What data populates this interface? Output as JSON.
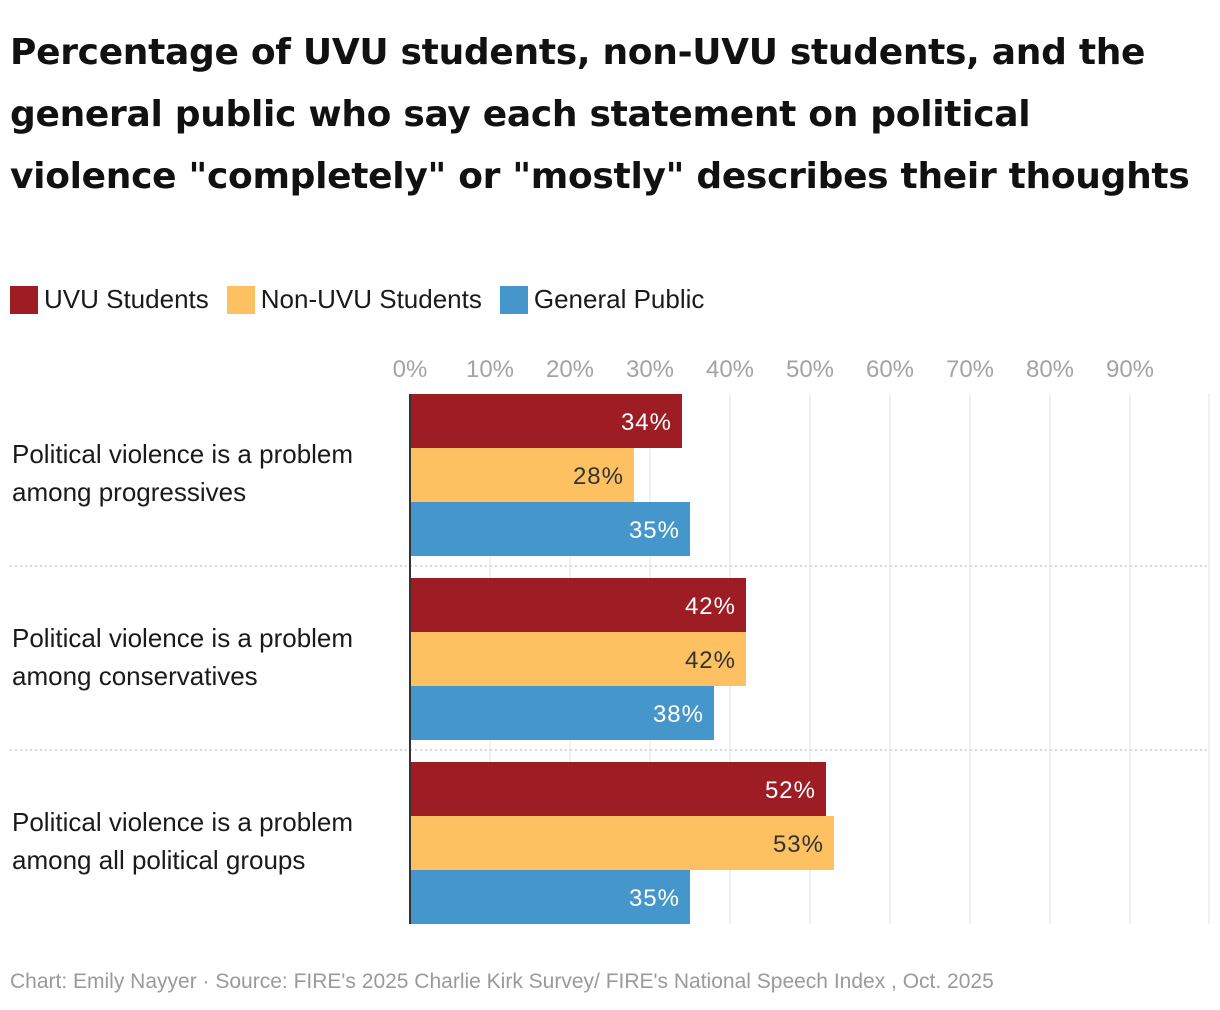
{
  "chart_data": {
    "type": "bar",
    "orientation": "horizontal",
    "title": "Percentage of UVU students, non-UVU students, and the general public who say each statement on political violence \"completely\" or \"mostly\" describes their thoughts",
    "categories": [
      [
        "Political violence is a problem",
        "among progressives"
      ],
      [
        "Political violence is a problem",
        "among conservatives"
      ],
      [
        "Political violence is a problem",
        "among all political groups"
      ]
    ],
    "series": [
      {
        "name": "UVU Students",
        "color": "#9e1c24",
        "label_color": "#ffffff",
        "values": [
          34,
          42,
          52
        ]
      },
      {
        "name": "Non-UVU Students",
        "color": "#fdc162",
        "label_color": "#333333",
        "values": [
          28,
          42,
          53
        ]
      },
      {
        "name": "General Public",
        "color": "#4597cb",
        "label_color": "#ffffff",
        "values": [
          35,
          38,
          35
        ]
      }
    ],
    "xlim": [
      0,
      100
    ],
    "ticks": [
      "0%",
      "10%",
      "20%",
      "30%",
      "40%",
      "50%",
      "60%",
      "70%",
      "80%",
      "90%"
    ],
    "tick_values": [
      0,
      10,
      20,
      30,
      40,
      50,
      60,
      70,
      80,
      90
    ],
    "value_suffix": "%",
    "legend_position": "top-left",
    "grid": true
  },
  "footer": {
    "credit": "Chart: Emily Nayyer",
    "separator": " · ",
    "source": "Source: FIRE's 2025 Charlie Kirk Survey/ FIRE's National Speech Index , Oct. 2025"
  }
}
